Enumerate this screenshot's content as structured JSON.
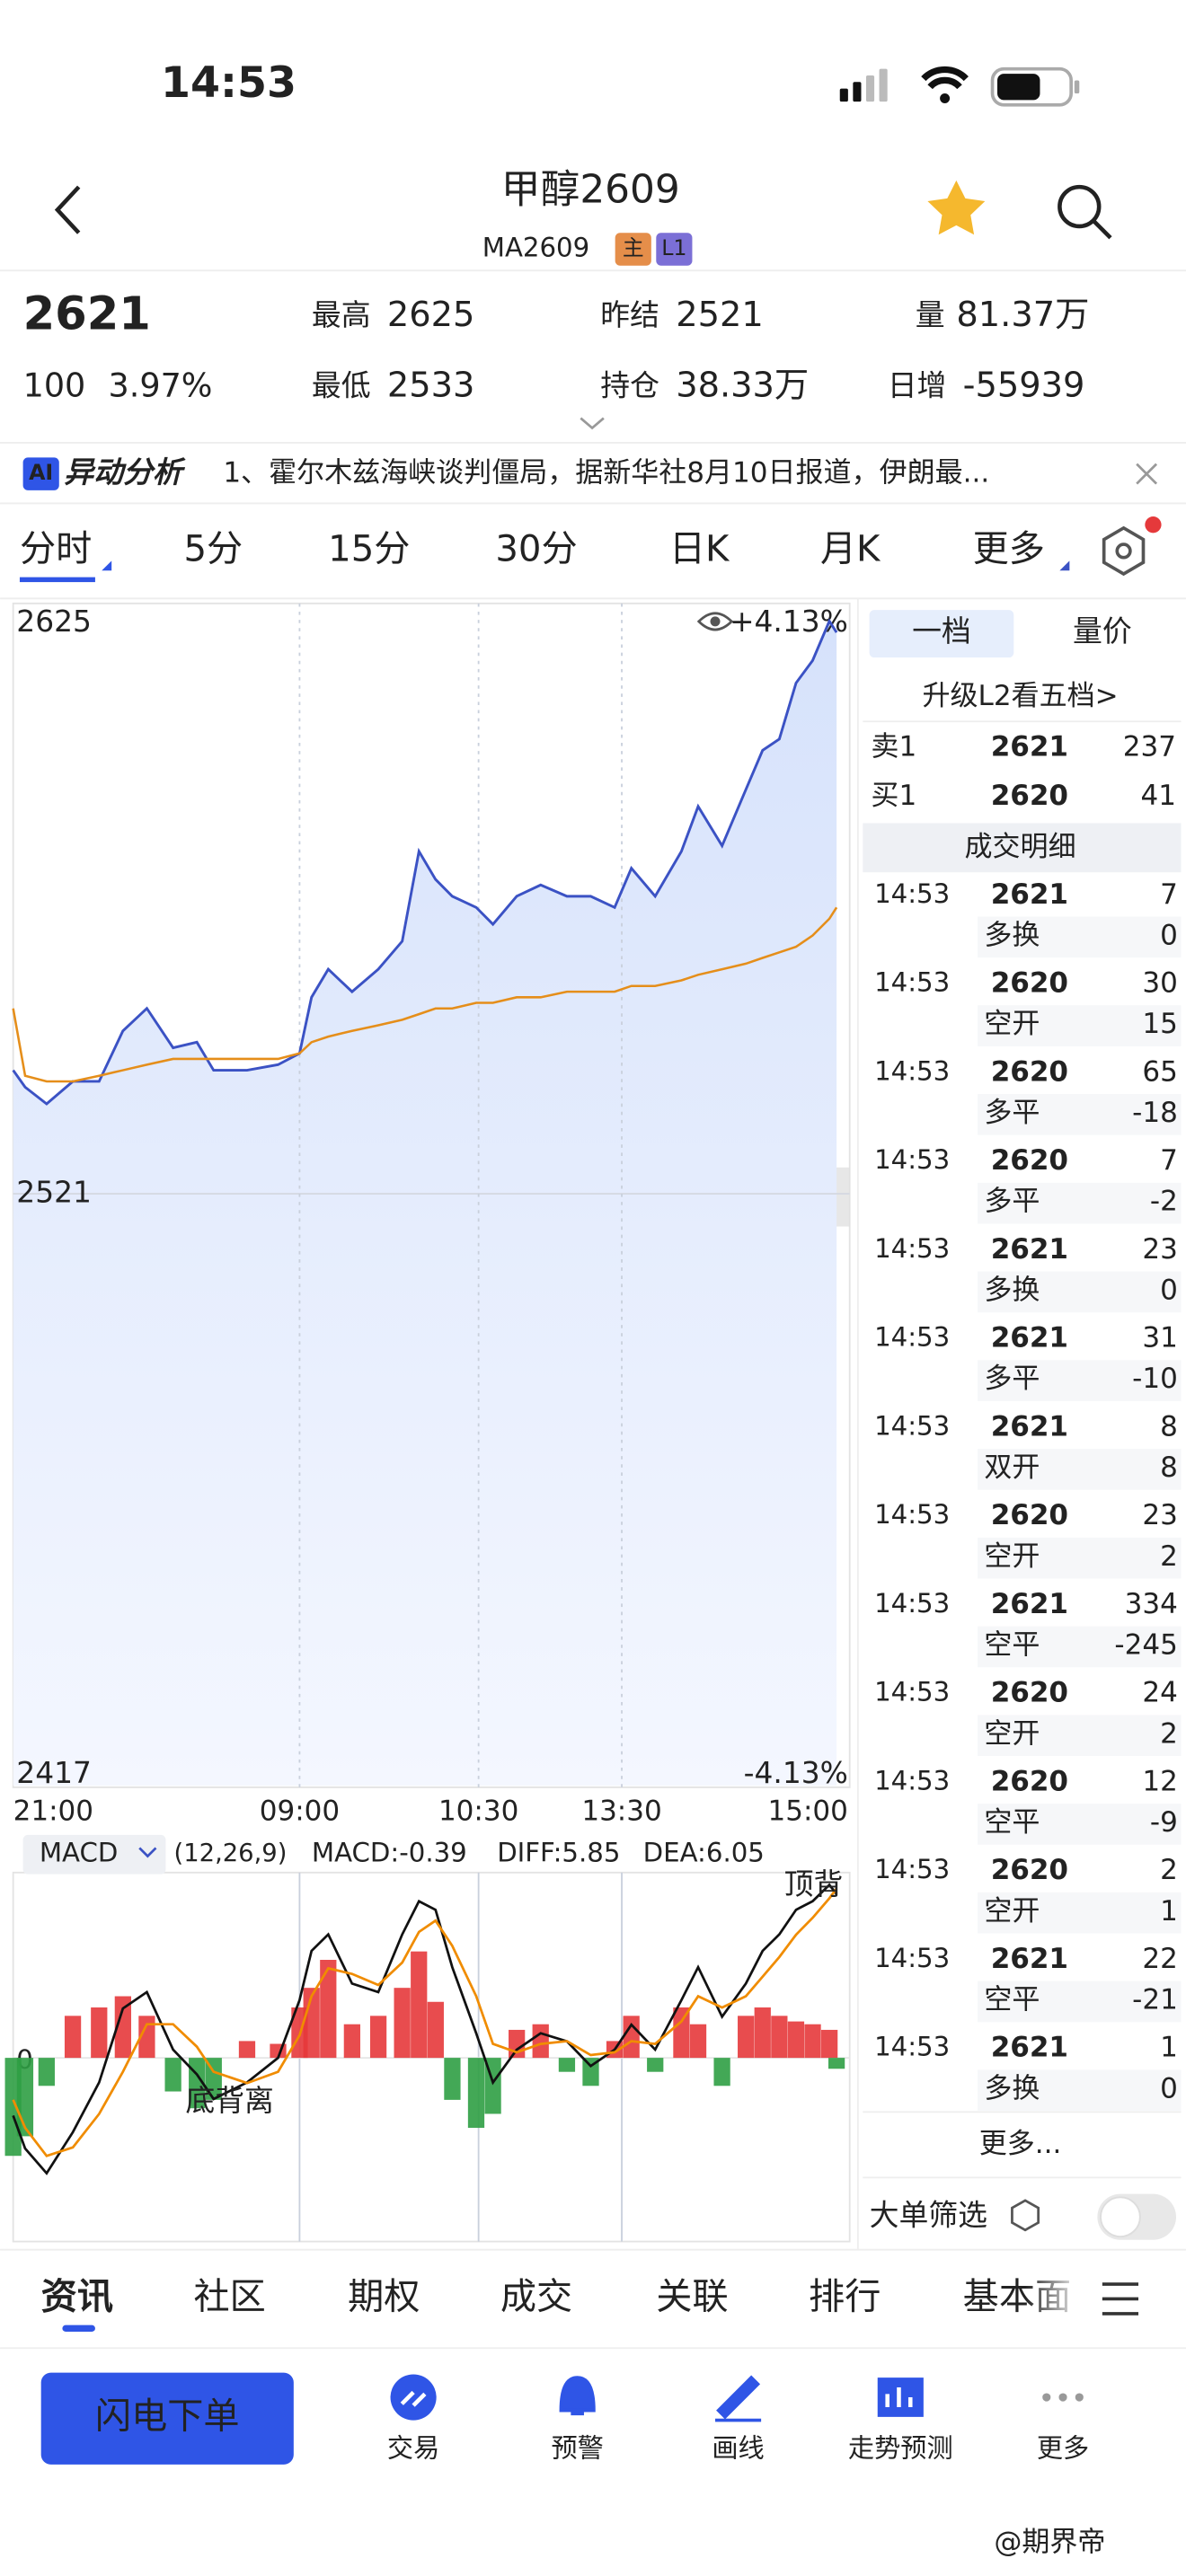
{
  "status_bar": {
    "time": "14:53"
  },
  "header": {
    "title": "甲醇2609",
    "code": "MA2609",
    "badges": [
      "主",
      "L1"
    ]
  },
  "quote": {
    "price": "2621",
    "change": "100",
    "change_pct": "3.97%",
    "stats": [
      {
        "label": "最高",
        "value": "2625",
        "color": "#e5393b"
      },
      {
        "label": "最低",
        "value": "2533",
        "color": "#e5393b"
      },
      {
        "label": "昨结",
        "value": "2521",
        "color": "#222222"
      },
      {
        "label": "持仓",
        "value": "38.33万",
        "color": "#222222"
      },
      {
        "label": "量",
        "value": "81.37万",
        "color": "#222222"
      },
      {
        "label": "日增",
        "value": "-55939",
        "color": "#222222"
      }
    ]
  },
  "news": {
    "badge": "AI",
    "tag": "异动分析",
    "text": "1、霍尔木兹海峡谈判僵局，据新华社8月10日报道，伊朗最..."
  },
  "period_tabs": [
    "分时",
    "5分",
    "15分",
    "30分",
    "日K",
    "月K",
    "更多"
  ],
  "chart_data": [
    {
      "type": "line",
      "x": [
        "21:00",
        "21:05",
        "21:14",
        "21:25",
        "21:36",
        "21:46",
        "21:56",
        "22:07",
        "22:17",
        "22:24",
        "22:38",
        "22:51",
        "09:00",
        "09:05",
        "09:12",
        "09:22",
        "09:33",
        "09:43",
        "09:50",
        "09:57",
        "10:04",
        "10:14",
        "10:36",
        "10:46",
        "10:56",
        "11:07",
        "11:17",
        "11:27",
        "13:34",
        "13:44",
        "13:55",
        "14:02",
        "14:12",
        "14:22",
        "14:29",
        "14:36",
        "14:43",
        "14:50",
        "14:57",
        "15:00"
      ],
      "series": [
        {
          "color": "#3b52c4",
          "values": [
            2543,
            2540,
            2537,
            2541,
            2541,
            2550,
            2554,
            2547,
            2548,
            2543,
            2543,
            2544,
            2546,
            2556,
            2561,
            2557,
            2561,
            2566,
            2582,
            2577,
            2574,
            2572,
            2569,
            2574,
            2576,
            2574,
            2574,
            2572,
            2579,
            2574,
            2582,
            2590,
            2583,
            2593,
            2600,
            2602,
            2612,
            2616,
            2623,
            2621
          ]
        },
        {
          "color": "#e58e1a",
          "values": [
            2554,
            2542,
            2541,
            2541,
            2542,
            2543,
            2544,
            2545,
            2545,
            2545,
            2545,
            2545,
            2546,
            2548,
            2549,
            2550,
            2551,
            2552,
            2553,
            2554,
            2554,
            2555,
            2555,
            2556,
            2556,
            2557,
            2557,
            2557,
            2558,
            2558,
            2559,
            2560,
            2561,
            2562,
            2563,
            2564,
            2565,
            2567,
            2570,
            2572
          ]
        }
      ],
      "xlim": [
        "21:00",
        "15:00"
      ],
      "xticks": [
        "21:00",
        "09:00",
        "10:30",
        "13:30",
        "15:00"
      ],
      "ylim": [
        2417,
        2625
      ],
      "yticks": [
        2625,
        2521,
        2417
      ],
      "y2lim": [
        -4.13,
        4.13
      ],
      "y2ticks": [
        {
          "value": 4.13,
          "label": "+4.13%"
        },
        {
          "value": -4.13,
          "label": "-4.13%"
        }
      ],
      "grid": true
    },
    {
      "type": "macd",
      "title": "MACD",
      "params": "(12,26,9)",
      "labels": [
        "MACD:-0.39",
        "DIFF:5.85",
        "DEA:6.05"
      ],
      "label_colors": [
        "#2f9e44",
        "#222222",
        "#f08c00"
      ],
      "x": [
        "21:00",
        "21:05",
        "21:14",
        "21:25",
        "21:36",
        "21:46",
        "21:56",
        "22:07",
        "22:17",
        "22:24",
        "22:38",
        "22:51",
        "09:00",
        "09:05",
        "09:12",
        "09:22",
        "09:33",
        "09:43",
        "09:50",
        "09:57",
        "10:04",
        "10:14",
        "10:36",
        "10:46",
        "10:56",
        "11:07",
        "11:17",
        "11:27",
        "13:34",
        "13:44",
        "13:55",
        "14:02",
        "14:12",
        "14:22",
        "14:29",
        "14:36",
        "14:43",
        "14:50",
        "14:57",
        "15:00"
      ],
      "xlim": [
        "21:00",
        "15:00"
      ],
      "ylim": [
        -6.5,
        6.5
      ],
      "yticks": [
        0
      ],
      "series": [
        {
          "kind": "bar",
          "colors": [
            "#e5393b",
            "#2f9e44"
          ],
          "values": [
            -3.5,
            -2.8,
            -1,
            1.5,
            1.8,
            2.2,
            1.5,
            -1.2,
            -1.8,
            -1.5,
            0.6,
            0.5,
            1.8,
            2.5,
            3.5,
            1.2,
            1.5,
            2.5,
            3.8,
            2,
            -1.5,
            -2.5,
            -2,
            1,
            1.2,
            -0.5,
            -1,
            0.6,
            1.5,
            -0.5,
            1.8,
            1.2,
            -1,
            1.5,
            1.8,
            1.5,
            1.3,
            1.2,
            1,
            -0.39
          ]
        },
        {
          "kind": "line",
          "color": "#111111",
          "values": [
            -2.06,
            -3.24,
            -4.12,
            -2.65,
            -0.88,
            1.76,
            2.35,
            0.29,
            -0.59,
            -1.47,
            -0.88,
            0,
            2.06,
            3.82,
            4.41,
            2.65,
            2.35,
            4.41,
            5.59,
            5.29,
            3.24,
            0.88,
            -0.88,
            0.29,
            0.88,
            0.59,
            -0.29,
            0.29,
            1.18,
            0.29,
            2.06,
            3.24,
            1.47,
            2.65,
            3.82,
            4.41,
            5.29,
            5.59,
            6.18,
            5.85
          ]
        },
        {
          "kind": "line",
          "color": "#f08c00",
          "values": [
            -1.5,
            -2.5,
            -3.5,
            -3.2,
            -2,
            -0.5,
            1.2,
            1.2,
            0.4,
            -0.5,
            -0.9,
            -0.5,
            0.8,
            2.2,
            3.2,
            3.0,
            2.6,
            3.4,
            4.5,
            4.9,
            4.0,
            2.2,
            0.5,
            0.2,
            0.5,
            0.6,
            0.1,
            0.2,
            0.6,
            0.5,
            1.3,
            2.2,
            1.8,
            2.2,
            2.9,
            3.6,
            4.4,
            5.0,
            5.7,
            6.05
          ]
        }
      ],
      "annotations": [
        "底背离",
        "顶背"
      ]
    }
  ],
  "order_book": {
    "tabs": [
      "一档",
      "量价"
    ],
    "upgrade": "升级L2看五档>",
    "levels": [
      {
        "label": "卖1",
        "price": "2621",
        "volume": "237"
      },
      {
        "label": "买1",
        "price": "2620",
        "volume": "41"
      }
    ]
  },
  "trades": {
    "title": "成交明细",
    "rows": [
      {
        "time": "14:53",
        "price": "2621",
        "volume": "7",
        "kind": "多换",
        "change": "0",
        "color": "#e5393b",
        "kind_color": "#e5393b"
      },
      {
        "time": "14:53",
        "price": "2620",
        "volume": "30",
        "kind": "空开",
        "change": "15",
        "color": "#2f9e44",
        "kind_color": "#2f9e44"
      },
      {
        "time": "14:53",
        "price": "2620",
        "volume": "65",
        "kind": "多平",
        "change": "-18",
        "color": "#2f9e44",
        "kind_color": "#2f9e44"
      },
      {
        "time": "14:53",
        "price": "2620",
        "volume": "7",
        "kind": "多平",
        "change": "-2",
        "color": "#2f9e44",
        "kind_color": "#2f9e44"
      },
      {
        "time": "14:53",
        "price": "2621",
        "volume": "23",
        "kind": "多换",
        "change": "0",
        "color": "#e5393b",
        "kind_color": "#e5393b"
      },
      {
        "time": "14:53",
        "price": "2621",
        "volume": "31",
        "kind": "多平",
        "change": "-10",
        "color": "#2f9e44",
        "kind_color": "#2f9e44"
      },
      {
        "time": "14:53",
        "price": "2621",
        "volume": "8",
        "kind": "双开",
        "change": "8",
        "color": "#222222",
        "kind_color": "#222222"
      },
      {
        "time": "14:53",
        "price": "2620",
        "volume": "23",
        "kind": "空开",
        "change": "2",
        "color": "#2f9e44",
        "kind_color": "#2f9e44"
      },
      {
        "time": "14:53",
        "price": "2621",
        "volume": "334",
        "kind": "空平",
        "change": "-245",
        "color": "#e5393b",
        "kind_color": "#e5393b"
      },
      {
        "time": "14:53",
        "price": "2620",
        "volume": "24",
        "kind": "空开",
        "change": "2",
        "color": "#2f9e44",
        "kind_color": "#2f9e44"
      },
      {
        "time": "14:53",
        "price": "2620",
        "volume": "12",
        "kind": "空平",
        "change": "-9",
        "color": "#e5393b",
        "kind_color": "#e5393b"
      },
      {
        "time": "14:53",
        "price": "2620",
        "volume": "2",
        "kind": "空开",
        "change": "1",
        "color": "#2f9e44",
        "kind_color": "#2f9e44"
      },
      {
        "time": "14:53",
        "price": "2621",
        "volume": "22",
        "kind": "空平",
        "change": "-21",
        "color": "#e5393b",
        "kind_color": "#e5393b"
      },
      {
        "time": "14:53",
        "price": "2621",
        "volume": "1",
        "kind": "多换",
        "change": "0",
        "color": "#e5393b",
        "kind_color": "#e5393b"
      }
    ],
    "more": "更多...",
    "filter": "大单筛选"
  },
  "bottom_tabs": [
    "资讯",
    "社区",
    "期权",
    "成交",
    "关联",
    "排行",
    "基本面"
  ],
  "actions": {
    "primary": "闪电下单",
    "items": [
      "交易",
      "预警",
      "画线",
      "走势预测",
      "更多"
    ]
  },
  "watermark": "@期界帝"
}
